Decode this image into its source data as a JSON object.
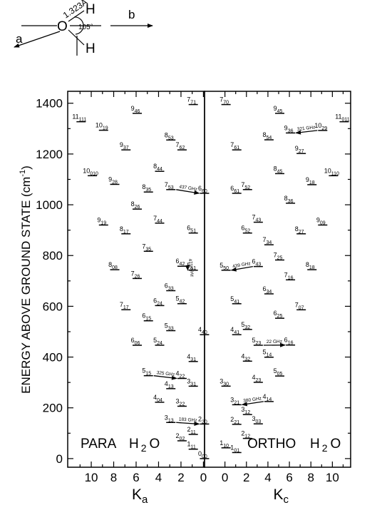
{
  "diagram": {
    "atom_o": "O",
    "atom_h1": "H",
    "atom_h2": "H",
    "bond": "1.323Å",
    "angle": "105°",
    "axis_a": "a",
    "axis_b": "b"
  },
  "chart_data": {
    "type": "levels",
    "ylabel": [
      "ENERGY ABOVE GROUND STATE (cm",
      "-1",
      ")"
    ],
    "ylim": [
      -34,
      1447
    ],
    "yticks": [
      0,
      200,
      400,
      600,
      800,
      1000,
      1200,
      1400
    ],
    "yminor": [
      100,
      300,
      500,
      700,
      900,
      1100,
      1300
    ],
    "panels": [
      {
        "label": "PARA",
        "formula": [
          "H",
          "2",
          "O"
        ],
        "xlabel": [
          "K",
          "a"
        ],
        "xlim": [
          12.1,
          -0.1
        ],
        "xticks": [
          10,
          8,
          6,
          4,
          2,
          0
        ],
        "xminor": [
          11,
          9,
          7,
          5,
          3,
          1
        ],
        "levels": [
          {
            "j": "0",
            "k": "00",
            "x": 0,
            "energy": 0
          },
          {
            "j": "1",
            "k": "11",
            "x": 1,
            "energy": 37.1
          },
          {
            "j": "2",
            "k": "02",
            "x": 2,
            "energy": 70.1
          },
          {
            "j": "2",
            "k": "11",
            "x": 1,
            "energy": 95.2
          },
          {
            "j": "2",
            "k": "20",
            "x": 0,
            "energy": 136.2
          },
          {
            "j": "3",
            "k": "13",
            "x": 3,
            "energy": 142.3
          },
          {
            "j": "3",
            "k": "22",
            "x": 2,
            "energy": 206.3
          },
          {
            "j": "4",
            "k": "04",
            "x": 4,
            "energy": 222.0
          },
          {
            "j": "4",
            "k": "13",
            "x": 3,
            "energy": 275.5
          },
          {
            "j": "3",
            "k": "31",
            "x": 1,
            "energy": 285.2
          },
          {
            "j": "4",
            "k": "22",
            "x": 2,
            "energy": 315.8
          },
          {
            "j": "5",
            "k": "15",
            "x": 5,
            "energy": 326.6
          },
          {
            "j": "4",
            "k": "31",
            "x": 1,
            "energy": 382.5
          },
          {
            "j": "5",
            "k": "24",
            "x": 4,
            "energy": 446.7
          },
          {
            "j": "6",
            "k": "06",
            "x": 6,
            "energy": 446.5
          },
          {
            "j": "4",
            "k": "40",
            "x": 0,
            "energy": 488.1
          },
          {
            "j": "5",
            "k": "33",
            "x": 3,
            "energy": 504.0
          },
          {
            "j": "6",
            "k": "15",
            "x": 5,
            "energy": 542.9
          },
          {
            "j": "7",
            "k": "17",
            "x": 7,
            "energy": 586.5
          },
          {
            "j": "6",
            "k": "24",
            "x": 4,
            "energy": 602.8
          },
          {
            "j": "5",
            "k": "42",
            "x": 2,
            "energy": 610.3
          },
          {
            "j": "6",
            "k": "33",
            "x": 3,
            "energy": 661.5
          },
          {
            "j": "7",
            "k": "26",
            "x": 6,
            "energy": 709.6
          },
          {
            "j": "8",
            "k": "08",
            "x": 8,
            "energy": 744.1
          },
          {
            "j": "6",
            "k": "42",
            "x": 2,
            "energy": 757.8
          },
          {
            "j": "5",
            "k": "51",
            "x": 1,
            "energy": 742.1
          },
          {
            "j": "7",
            "k": "35",
            "x": 5,
            "energy": 816.7
          },
          {
            "j": "8",
            "k": "17",
            "x": 7,
            "energy": 885.6
          },
          {
            "j": "9",
            "k": "19",
            "x": 9,
            "energy": 920.2
          },
          {
            "j": "6",
            "k": "51",
            "x": 1,
            "energy": 888.6
          },
          {
            "j": "7",
            "k": "44",
            "x": 4,
            "energy": 927.7
          },
          {
            "j": "8",
            "k": "26",
            "x": 6,
            "energy": 982.9
          },
          {
            "j": "8",
            "k": "35",
            "x": 5,
            "energy": 1050.2
          },
          {
            "j": "7",
            "k": "53",
            "x": 3,
            "energy": 1059.7
          },
          {
            "j": "6",
            "k": "60",
            "x": 0,
            "energy": 1045.1
          },
          {
            "j": "9",
            "k": "28",
            "x": 8,
            "energy": 1080.4
          },
          {
            "j": "10",
            "k": "010",
            "x": 10,
            "energy": 1114.5
          },
          {
            "j": "8",
            "k": "44",
            "x": 4,
            "energy": 1131.8
          },
          {
            "j": "9",
            "k": "37",
            "x": 7,
            "energy": 1216.2
          },
          {
            "j": "7",
            "k": "62",
            "x": 2,
            "energy": 1216.2
          },
          {
            "j": "8",
            "k": "53",
            "x": 3,
            "energy": 1255.2
          },
          {
            "j": "10",
            "k": "19",
            "x": 9,
            "energy": 1293.6
          },
          {
            "j": "11",
            "k": "111",
            "x": 11,
            "energy": 1327.1
          },
          {
            "j": "9",
            "k": "46",
            "x": 6,
            "energy": 1360.2
          },
          {
            "j": "7",
            "k": "71",
            "x": 1,
            "energy": 1394.8
          }
        ],
        "transitions": [
          {
            "label": "183 GHz",
            "from": {
              "j": "3",
              "k": "13"
            },
            "to": {
              "j": "2",
              "k": "20"
            }
          },
          {
            "label": "325 GHz",
            "from": {
              "j": "5",
              "k": "15"
            },
            "to": {
              "j": "4",
              "k": "22"
            }
          },
          {
            "label": "437 GHz",
            "from": {
              "j": "7",
              "k": "53"
            },
            "to": {
              "j": "6",
              "k": "60"
            }
          },
          {
            "label": "471 GHz",
            "from": {
              "j": "6",
              "k": "42"
            },
            "to": {
              "j": "5",
              "k": "51"
            }
          }
        ]
      },
      {
        "label": "ORTHO",
        "formula": [
          "H",
          "2",
          "O"
        ],
        "xlabel": [
          "K",
          "c"
        ],
        "xlim": [
          -1.9,
          11.7
        ],
        "xticks": [
          0,
          2,
          4,
          6,
          8,
          10
        ],
        "xminor": [
          1,
          3,
          5,
          7,
          9,
          11
        ],
        "levels": [
          {
            "j": "1",
            "k": "01",
            "x": 1,
            "energy": 23.8
          },
          {
            "j": "1",
            "k": "10",
            "x": 0,
            "energy": 42.4
          },
          {
            "j": "2",
            "k": "12",
            "x": 2,
            "energy": 79.5
          },
          {
            "j": "2",
            "k": "21",
            "x": 1,
            "energy": 134.9
          },
          {
            "j": "3",
            "k": "03",
            "x": 3,
            "energy": 136.8
          },
          {
            "j": "3",
            "k": "12",
            "x": 2,
            "energy": 173.4
          },
          {
            "j": "3",
            "k": "21",
            "x": 1,
            "energy": 212.2
          },
          {
            "j": "4",
            "k": "14",
            "x": 4,
            "energy": 224.8
          },
          {
            "j": "3",
            "k": "30",
            "x": 0,
            "energy": 285.4
          },
          {
            "j": "4",
            "k": "23",
            "x": 3,
            "energy": 300.4
          },
          {
            "j": "5",
            "k": "05",
            "x": 5,
            "energy": 325.3
          },
          {
            "j": "4",
            "k": "32",
            "x": 2,
            "energy": 383.8
          },
          {
            "j": "5",
            "k": "14",
            "x": 4,
            "energy": 399.5
          },
          {
            "j": "6",
            "k": "16",
            "x": 6,
            "energy": 447.3
          },
          {
            "j": "5",
            "k": "23",
            "x": 3,
            "energy": 446.5
          },
          {
            "j": "4",
            "k": "41",
            "x": 1,
            "energy": 488.1
          },
          {
            "j": "5",
            "k": "32",
            "x": 2,
            "energy": 508.8
          },
          {
            "j": "6",
            "k": "25",
            "x": 5,
            "energy": 552.9
          },
          {
            "j": "7",
            "k": "07",
            "x": 7,
            "energy": 586.2
          },
          {
            "j": "5",
            "k": "41",
            "x": 1,
            "energy": 610.1
          },
          {
            "j": "6",
            "k": "34",
            "x": 4,
            "energy": 649.0
          },
          {
            "j": "7",
            "k": "16",
            "x": 6,
            "energy": 704.2
          },
          {
            "j": "5",
            "k": "50",
            "x": 0,
            "energy": 742.1
          },
          {
            "j": "8",
            "k": "18",
            "x": 8,
            "energy": 744.2
          },
          {
            "j": "6",
            "k": "43",
            "x": 3,
            "energy": 756.7
          },
          {
            "j": "7",
            "k": "25",
            "x": 5,
            "energy": 782.4
          },
          {
            "j": "7",
            "k": "34",
            "x": 4,
            "energy": 842.4
          },
          {
            "j": "8",
            "k": "27",
            "x": 7,
            "energy": 885.6
          },
          {
            "j": "6",
            "k": "52",
            "x": 2,
            "energy": 888.6
          },
          {
            "j": "9",
            "k": "09",
            "x": 9,
            "energy": 920.2
          },
          {
            "j": "7",
            "k": "43",
            "x": 3,
            "energy": 931.2
          },
          {
            "j": "8",
            "k": "36",
            "x": 6,
            "energy": 1006.1
          },
          {
            "j": "9",
            "k": "18",
            "x": 8,
            "energy": 1079.1
          },
          {
            "j": "10",
            "k": "110",
            "x": 10,
            "energy": 1114.5
          },
          {
            "j": "8",
            "k": "45",
            "x": 5,
            "energy": 1122.7
          },
          {
            "j": "7",
            "k": "52",
            "x": 2,
            "energy": 1059.8
          },
          {
            "j": "6",
            "k": "61",
            "x": 1,
            "energy": 1045.1
          },
          {
            "j": "9",
            "k": "27",
            "x": 7,
            "energy": 1201.9
          },
          {
            "j": "7",
            "k": "61",
            "x": 1,
            "energy": 1216.2
          },
          {
            "j": "8",
            "k": "54",
            "x": 4,
            "energy": 1255.9
          },
          {
            "j": "9",
            "k": "36",
            "x": 6,
            "energy": 1282.9
          },
          {
            "j": "10",
            "k": "29",
            "x": 9,
            "energy": 1292.8
          },
          {
            "j": "11",
            "k": "011",
            "x": 11,
            "energy": 1327.1
          },
          {
            "j": "9",
            "k": "45",
            "x": 5,
            "energy": 1360.2
          },
          {
            "j": "7",
            "k": "70",
            "x": 0,
            "energy": 1394.8
          }
        ],
        "transitions": [
          {
            "label": "380 GHz",
            "from": {
              "j": "4",
              "k": "14"
            },
            "to": {
              "j": "3",
              "k": "21"
            }
          },
          {
            "label": "22 GHz",
            "from": {
              "j": "5",
              "k": "23"
            },
            "to": {
              "j": "6",
              "k": "16"
            }
          },
          {
            "label": "439 GHz",
            "from": {
              "j": "6",
              "k": "43"
            },
            "to": {
              "j": "5",
              "k": "50"
            }
          },
          {
            "label": "321 GHz",
            "from": {
              "j": "10",
              "k": "29"
            },
            "to": {
              "j": "9",
              "k": "36"
            }
          }
        ]
      }
    ]
  }
}
